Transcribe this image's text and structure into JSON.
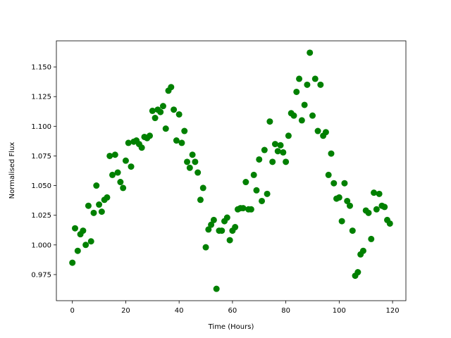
{
  "chart_data": {
    "type": "scatter",
    "xlabel": "Time (Hours)",
    "ylabel": "Normalised Flux",
    "series": [
      {
        "color": "#008000",
        "x": [
          0,
          1,
          2,
          3,
          4,
          5,
          6,
          7,
          8,
          9,
          10,
          11,
          12,
          13,
          14,
          15,
          16,
          17,
          18,
          19,
          20,
          21,
          22,
          23,
          24,
          25,
          26,
          27,
          28,
          29,
          30,
          31,
          32,
          33,
          34,
          35,
          36,
          37,
          38,
          39,
          40,
          41,
          42,
          43,
          44,
          45,
          46,
          47,
          48,
          49,
          50,
          51,
          52,
          53,
          54,
          55,
          56,
          57,
          58,
          59,
          60,
          61,
          62,
          63,
          64,
          65,
          66,
          67,
          68,
          69,
          70,
          71,
          72,
          73,
          74,
          75,
          76,
          77,
          78,
          79,
          80,
          81,
          82,
          83,
          84,
          85,
          86,
          87,
          88,
          89,
          90,
          91,
          92,
          93,
          94,
          95,
          96,
          97,
          98,
          99,
          100,
          101,
          102,
          103,
          104,
          105,
          106,
          107,
          108,
          109,
          110,
          111,
          112,
          113,
          114,
          115,
          116,
          117,
          118,
          119
        ],
        "values": [
          0.985,
          1.014,
          0.995,
          1.009,
          1.012,
          1.0,
          1.033,
          1.003,
          1.027,
          1.05,
          1.034,
          1.028,
          1.038,
          1.04,
          1.075,
          1.059,
          1.076,
          1.061,
          1.053,
          1.048,
          1.071,
          1.086,
          1.066,
          1.087,
          1.088,
          1.085,
          1.082,
          1.091,
          1.09,
          1.092,
          1.113,
          1.107,
          1.114,
          1.112,
          1.117,
          1.098,
          1.13,
          1.133,
          1.114,
          1.088,
          1.11,
          1.086,
          1.096,
          1.07,
          1.065,
          1.076,
          1.07,
          1.061,
          1.038,
          1.048,
          0.998,
          1.013,
          1.017,
          1.021,
          0.963,
          1.012,
          1.012,
          1.02,
          1.023,
          1.004,
          1.012,
          1.015,
          1.03,
          1.031,
          1.031,
          1.053,
          1.03,
          1.03,
          1.059,
          1.046,
          1.072,
          1.037,
          1.08,
          1.043,
          1.104,
          1.07,
          1.085,
          1.079,
          1.084,
          1.078,
          1.07,
          1.092,
          1.111,
          1.109,
          1.129,
          1.14,
          1.105,
          1.118,
          1.135,
          1.162,
          1.109,
          1.14,
          1.096,
          1.135,
          1.092,
          1.095,
          1.059,
          1.077,
          1.052,
          1.039,
          1.04,
          1.02,
          1.052,
          1.037,
          1.033,
          1.012,
          0.974,
          0.977,
          0.992,
          0.995,
          1.029,
          1.027,
          1.005,
          1.044,
          1.03,
          1.043,
          1.033,
          1.032,
          1.021,
          1.018
        ]
      }
    ],
    "xlim": [
      -6,
      125
    ],
    "ylim": [
      0.953,
      1.172
    ],
    "xticks": [
      0,
      20,
      40,
      60,
      80,
      100,
      120
    ],
    "yticks": [
      0.975,
      {
        "value": 1.0,
        "label": "1.000"
      },
      1.025,
      {
        "value": 1.05,
        "label": "1.050"
      },
      1.075,
      {
        "value": 1.1,
        "label": "1.100"
      },
      1.125,
      {
        "value": 1.15,
        "label": "1.150"
      }
    ]
  }
}
